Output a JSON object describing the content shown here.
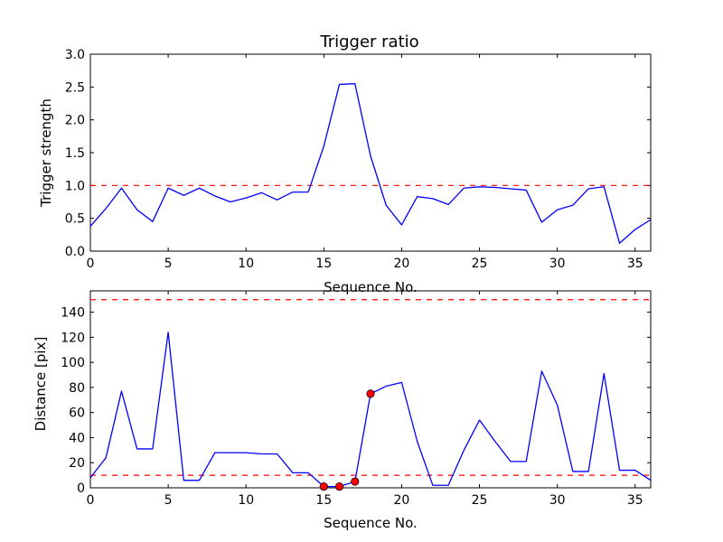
{
  "chart_data": [
    {
      "type": "line",
      "title": "Trigger ratio",
      "xlabel": "Sequence No.",
      "ylabel": "Trigger strength",
      "xlim": [
        0,
        36
      ],
      "ylim": [
        0,
        3.0
      ],
      "xticks": [
        0,
        5,
        10,
        15,
        20,
        25,
        30,
        35
      ],
      "xtick_labels": [
        "0",
        "5",
        "10",
        "15",
        "20",
        "25",
        "30",
        "35"
      ],
      "yticks": [
        0,
        0.5,
        1.0,
        1.5,
        2.0,
        2.5,
        3.0
      ],
      "ytick_labels": [
        "0.0",
        "0.5",
        "1.0",
        "1.5",
        "2.0",
        "2.5",
        "3.0"
      ],
      "series": [
        {
          "color": "#0000ff",
          "x": [
            0,
            1,
            2,
            3,
            4,
            5,
            6,
            7,
            8,
            9,
            10,
            11,
            12,
            13,
            14,
            15,
            16,
            17,
            18,
            19,
            20,
            21,
            22,
            23,
            24,
            25,
            26,
            27,
            28,
            29,
            30,
            31,
            32,
            33,
            34,
            35,
            36
          ],
          "y": [
            0.38,
            0.65,
            0.96,
            0.63,
            0.45,
            0.96,
            0.85,
            0.96,
            0.84,
            0.75,
            0.81,
            0.89,
            0.78,
            0.9,
            0.9,
            1.6,
            2.54,
            2.55,
            1.45,
            0.7,
            0.4,
            0.83,
            0.8,
            0.71,
            0.96,
            0.98,
            0.97,
            0.95,
            0.93,
            0.44,
            0.63,
            0.7,
            0.95,
            0.98,
            0.12,
            0.33,
            0.48
          ]
        }
      ],
      "hlines": [
        {
          "y": 1.0,
          "color": "#ff0000",
          "style": "dashed"
        }
      ],
      "grid": false
    },
    {
      "type": "line",
      "title": "",
      "xlabel": "Sequence No.",
      "ylabel": "Distance [pix]",
      "xlim": [
        0,
        36
      ],
      "ylim": [
        0,
        157
      ],
      "xticks": [
        0,
        5,
        10,
        15,
        20,
        25,
        30,
        35
      ],
      "xtick_labels": [
        "0",
        "5",
        "10",
        "15",
        "20",
        "25",
        "30",
        "35"
      ],
      "yticks": [
        0,
        20,
        40,
        60,
        80,
        100,
        120,
        140
      ],
      "ytick_labels": [
        "0",
        "20",
        "40",
        "60",
        "80",
        "100",
        "120",
        "140"
      ],
      "series": [
        {
          "color": "#0000ff",
          "x": [
            0,
            1,
            2,
            3,
            4,
            5,
            6,
            7,
            8,
            9,
            10,
            11,
            12,
            13,
            14,
            15,
            16,
            17,
            18,
            19,
            20,
            21,
            22,
            23,
            24,
            25,
            26,
            27,
            28,
            29,
            30,
            31,
            32,
            33,
            34,
            35,
            36
          ],
          "y": [
            8,
            24,
            77,
            31,
            31,
            124,
            6,
            6,
            28,
            28,
            28,
            27,
            27,
            12,
            12,
            1,
            1,
            5,
            75,
            81,
            84,
            37,
            2,
            2,
            30,
            54,
            37,
            21,
            21,
            93,
            66,
            13,
            13,
            91,
            14,
            14,
            6
          ]
        }
      ],
      "markers": {
        "color": "#ff0000",
        "x": [
          15,
          16,
          17,
          18
        ],
        "y": [
          1,
          1,
          5,
          75
        ]
      },
      "hlines": [
        {
          "y": 150,
          "color": "#ff0000",
          "style": "dashed"
        },
        {
          "y": 10,
          "color": "#ff0000",
          "style": "dashed"
        }
      ],
      "grid": false
    }
  ]
}
